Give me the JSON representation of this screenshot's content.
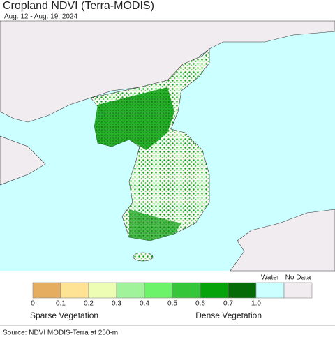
{
  "header": {
    "title": "Cropland NDVI (Terra-MODIS)",
    "date": "Aug. 12 - Aug. 19, 2024"
  },
  "legend": {
    "bins": [
      {
        "color": "#e5ad60"
      },
      {
        "color": "#fee395"
      },
      {
        "color": "#eefdb4"
      },
      {
        "color": "#a0f39a"
      },
      {
        "color": "#6cf36a"
      },
      {
        "color": "#35c63a"
      },
      {
        "color": "#07a30a"
      },
      {
        "color": "#056b07"
      }
    ],
    "ticks": [
      "0",
      "0.1",
      "0.2",
      "0.3",
      "0.4",
      "0.5",
      "0.6",
      "0.7",
      "1.0"
    ],
    "extras": [
      {
        "label": "Water",
        "color": "#ccffff"
      },
      {
        "label": "No Data",
        "color": "#f0ecf0"
      }
    ],
    "low_label": "Sparse Vegetation",
    "high_label": "Dense Vegetation"
  },
  "footer": {
    "source": "Source: NDVI MODIS-Terra at 250-m"
  }
}
